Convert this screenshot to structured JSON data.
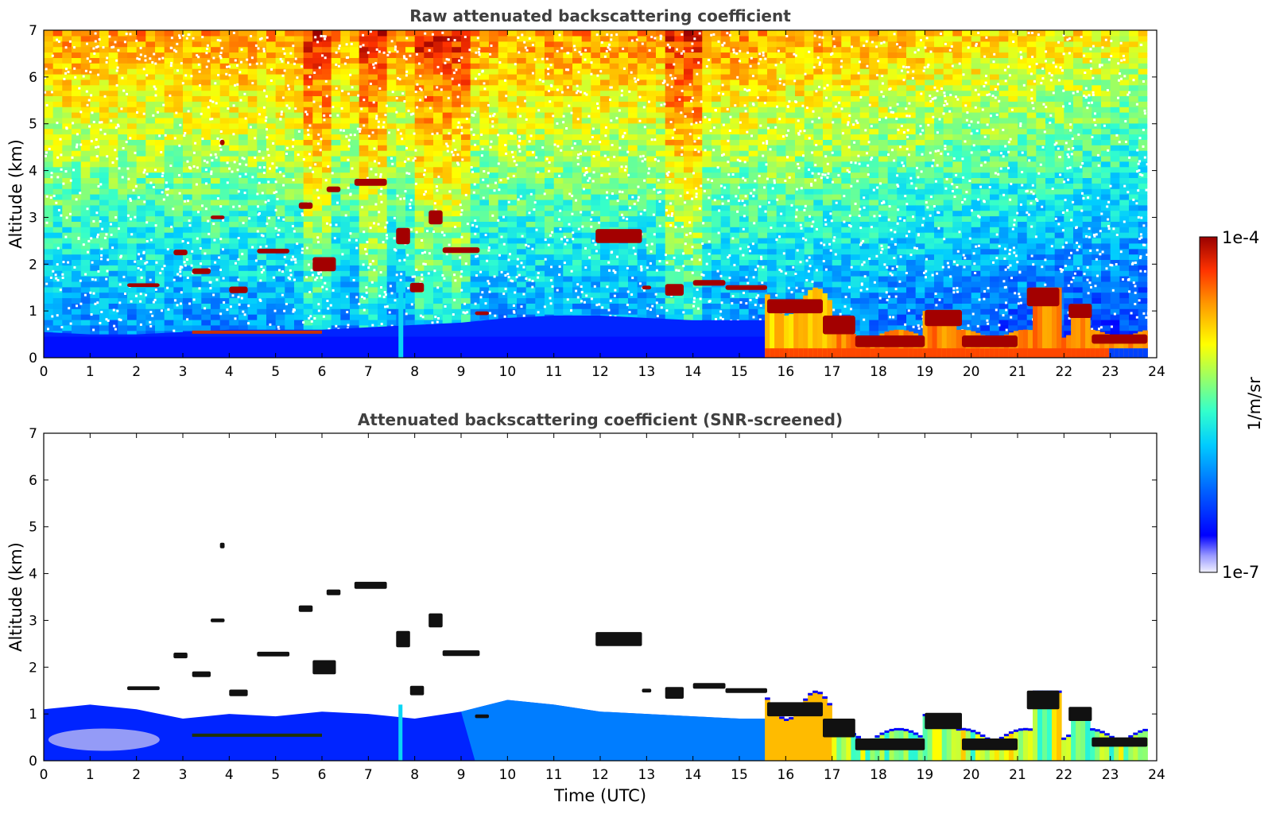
{
  "chart_data": [
    {
      "type": "heatmap",
      "title": "Raw attenuated backscattering coefficient",
      "xlabel": "",
      "ylabel": "Altitude (km)",
      "xlim": [
        0,
        24
      ],
      "ylim": [
        0,
        7
      ],
      "x_ticks": [
        0,
        1,
        2,
        3,
        4,
        5,
        6,
        7,
        8,
        9,
        10,
        11,
        12,
        13,
        14,
        15,
        16,
        17,
        18,
        19,
        20,
        21,
        22,
        23,
        24
      ],
      "y_ticks": [
        0,
        1,
        2,
        3,
        4,
        5,
        6,
        7
      ],
      "boundary_layer": [
        [
          0.0,
          0.55
        ],
        [
          1.0,
          0.5
        ],
        [
          2.0,
          0.5
        ],
        [
          3.0,
          0.55
        ],
        [
          4.0,
          0.6
        ],
        [
          5.0,
          0.6
        ],
        [
          6.0,
          0.6
        ],
        [
          7.0,
          0.65
        ],
        [
          8.0,
          0.7
        ],
        [
          9.0,
          0.75
        ],
        [
          10.0,
          0.85
        ],
        [
          11.0,
          0.9
        ],
        [
          12.0,
          0.9
        ],
        [
          13.0,
          0.85
        ],
        [
          14.0,
          0.8
        ],
        [
          15.0,
          0.8
        ],
        [
          15.6,
          0.8
        ]
      ],
      "noise_columns": [
        [
          5.6,
          6.3
        ],
        [
          6.7,
          7.4
        ],
        [
          8.0,
          9.2
        ],
        [
          13.5,
          14.1
        ]
      ],
      "cloud_layers": [
        {
          "t0": 1.8,
          "t1": 2.5,
          "z": 1.55,
          "th": 0.08
        },
        {
          "t0": 2.8,
          "t1": 3.1,
          "z": 2.25,
          "th": 0.12
        },
        {
          "t0": 3.2,
          "t1": 3.6,
          "z": 1.85,
          "th": 0.12
        },
        {
          "t0": 3.6,
          "t1": 3.9,
          "z": 3.0,
          "th": 0.08
        },
        {
          "t0": 3.8,
          "t1": 3.9,
          "z": 4.6,
          "th": 0.12
        },
        {
          "t0": 4.0,
          "t1": 4.4,
          "z": 1.45,
          "th": 0.14
        },
        {
          "t0": 4.6,
          "t1": 5.3,
          "z": 2.28,
          "th": 0.1
        },
        {
          "t0": 5.5,
          "t1": 5.8,
          "z": 3.25,
          "th": 0.14
        },
        {
          "t0": 5.8,
          "t1": 6.3,
          "z": 2.0,
          "th": 0.3
        },
        {
          "t0": 6.1,
          "t1": 6.4,
          "z": 3.6,
          "th": 0.12
        },
        {
          "t0": 6.7,
          "t1": 7.4,
          "z": 3.75,
          "th": 0.15
        },
        {
          "t0": 7.6,
          "t1": 7.9,
          "z": 2.6,
          "th": 0.35
        },
        {
          "t0": 7.9,
          "t1": 8.2,
          "z": 1.5,
          "th": 0.2
        },
        {
          "t0": 8.3,
          "t1": 8.6,
          "z": 3.0,
          "th": 0.3
        },
        {
          "t0": 8.6,
          "t1": 9.4,
          "z": 2.3,
          "th": 0.12
        },
        {
          "t0": 9.3,
          "t1": 9.6,
          "z": 0.95,
          "th": 0.08
        },
        {
          "t0": 11.9,
          "t1": 12.9,
          "z": 2.6,
          "th": 0.3
        },
        {
          "t0": 12.9,
          "t1": 13.1,
          "z": 1.5,
          "th": 0.08
        },
        {
          "t0": 13.4,
          "t1": 13.8,
          "z": 1.45,
          "th": 0.25
        },
        {
          "t0": 14.0,
          "t1": 14.7,
          "z": 1.6,
          "th": 0.12
        },
        {
          "t0": 14.7,
          "t1": 15.6,
          "z": 1.5,
          "th": 0.1
        },
        {
          "t0": 15.6,
          "t1": 16.8,
          "z": 1.1,
          "th": 0.3
        },
        {
          "t0": 16.8,
          "t1": 17.5,
          "z": 0.7,
          "th": 0.4
        },
        {
          "t0": 17.5,
          "t1": 19.0,
          "z": 0.35,
          "th": 0.25
        },
        {
          "t0": 19.0,
          "t1": 19.8,
          "z": 0.85,
          "th": 0.35
        },
        {
          "t0": 19.8,
          "t1": 21.0,
          "z": 0.35,
          "th": 0.25
        },
        {
          "t0": 21.2,
          "t1": 21.9,
          "z": 1.3,
          "th": 0.4
        },
        {
          "t0": 22.1,
          "t1": 22.6,
          "z": 1.0,
          "th": 0.3
        },
        {
          "t0": 22.6,
          "t1": 23.8,
          "z": 0.4,
          "th": 0.2
        }
      ],
      "dense_region": {
        "t0": 15.55,
        "t1": 23.8
      }
    },
    {
      "type": "heatmap",
      "title": "Attenuated backscattering coefficient (SNR-screened)",
      "xlabel": "Time (UTC)",
      "ylabel": "Altitude (km)",
      "xlim": [
        0,
        24
      ],
      "ylim": [
        0,
        7
      ],
      "x_ticks": [
        0,
        1,
        2,
        3,
        4,
        5,
        6,
        7,
        8,
        9,
        10,
        11,
        12,
        13,
        14,
        15,
        16,
        17,
        18,
        19,
        20,
        21,
        22,
        23,
        24
      ],
      "y_ticks": [
        0,
        1,
        2,
        3,
        4,
        5,
        6,
        7
      ],
      "screened_top": [
        [
          0.0,
          1.1
        ],
        [
          1.0,
          1.2
        ],
        [
          2.0,
          1.1
        ],
        [
          3.0,
          0.9
        ],
        [
          4.0,
          1.0
        ],
        [
          5.0,
          0.95
        ],
        [
          6.0,
          1.05
        ],
        [
          7.0,
          1.0
        ],
        [
          8.0,
          0.9
        ],
        [
          9.0,
          1.05
        ],
        [
          10.0,
          1.3
        ],
        [
          11.0,
          1.2
        ],
        [
          12.0,
          1.05
        ],
        [
          13.0,
          1.0
        ],
        [
          14.0,
          0.95
        ],
        [
          15.0,
          0.9
        ],
        [
          15.6,
          0.9
        ]
      ]
    }
  ],
  "colorbar": {
    "label": "1/m/sr",
    "max_label": "1e-4",
    "min_label": "1e-7",
    "scale": "log",
    "range": [
      1e-07,
      0.0001
    ],
    "colors": [
      "#ffffff",
      "#9999ff",
      "#0000ff",
      "#0066ff",
      "#00ccff",
      "#33ffcc",
      "#99ff66",
      "#ffff00",
      "#ff9900",
      "#ff3300",
      "#990000"
    ]
  }
}
